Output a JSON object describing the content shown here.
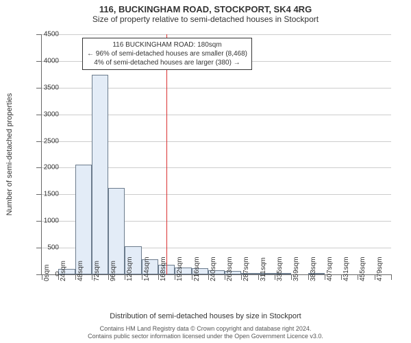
{
  "title": "116, BUCKINGHAM ROAD, STOCKPORT, SK4 4RG",
  "subtitle": "Size of property relative to semi-detached houses in Stockport",
  "y_axis_title": "Number of semi-detached properties",
  "x_axis_title": "Distribution of semi-detached houses by size in Stockport",
  "footer_line1": "Contains HM Land Registry data © Crown copyright and database right 2024.",
  "footer_line2": "Contains public sector information licensed under the Open Government Licence v3.0.",
  "annotation": {
    "line1": "116 BUCKINGHAM ROAD: 180sqm",
    "line2": "← 96% of semi-detached houses are smaller (8,468)",
    "line3": "4% of semi-detached houses are larger (380) →"
  },
  "chart": {
    "type": "histogram",
    "background_color": "#ffffff",
    "bar_fill": "#e3ecf7",
    "bar_border": "#6b7b8c",
    "grid_color": "#cccccc",
    "axis_color": "#666666",
    "reference_line_color": "#d93030",
    "reference_value": 180,
    "ylim": [
      0,
      4500
    ],
    "ytick_step": 500,
    "x_labels": [
      "0sqm",
      "24sqm",
      "48sqm",
      "72sqm",
      "96sqm",
      "120sqm",
      "144sqm",
      "168sqm",
      "192sqm",
      "216sqm",
      "240sqm",
      "263sqm",
      "287sqm",
      "311sqm",
      "335sqm",
      "359sqm",
      "383sqm",
      "407sqm",
      "431sqm",
      "455sqm",
      "479sqm"
    ],
    "values": [
      0,
      100,
      2060,
      3740,
      1620,
      530,
      280,
      180,
      130,
      110,
      80,
      60,
      30,
      10,
      20,
      0,
      10,
      0,
      0,
      0,
      0
    ],
    "title_fontsize": 13,
    "subtitle_fontsize": 12,
    "label_fontsize": 10,
    "axis_title_fontsize": 11,
    "annotation_fontsize": 10,
    "footer_fontsize": 9
  }
}
